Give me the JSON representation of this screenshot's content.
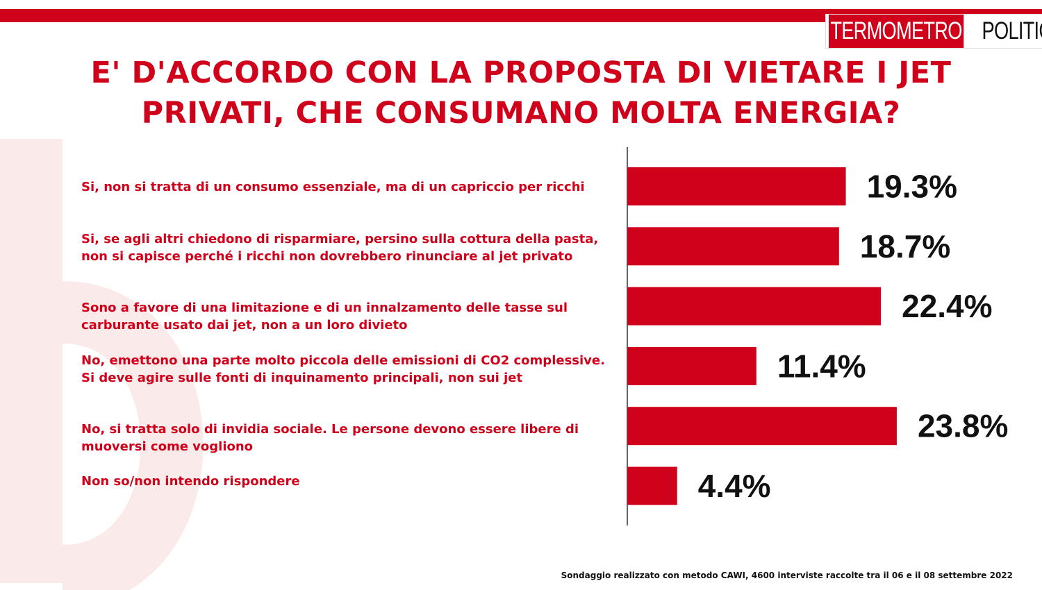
{
  "brand": {
    "logo_part1": "TERMOMETRO",
    "logo_part2": "POLITICO",
    "accent_color": "#d0021b"
  },
  "title": "E' D'ACCORDO CON LA PROPOSTA DI VIETARE I JET PRIVATI, CHE CONSUMANO MOLTA ENERGIA?",
  "footnote": "Sondaggio realizzato con metodo CAWI, 4600 interviste raccolte tra il 06 e il 08 settembre 2022",
  "chart_data": {
    "type": "bar",
    "orientation": "horizontal",
    "categories": [
      "Si, non si tratta di un consumo essenziale, ma di un capriccio per ricchi",
      "Si, se agli altri chiedono di risparmiare, persino sulla cottura della pasta, non si capisce perché i ricchi non dovrebbero rinunciare al jet privato",
      "Sono a favore di una limitazione e di un innalzamento delle tasse sul carburante usato dai jet, non a un loro divieto",
      "No, emettono una parte molto piccola delle emissioni di CO2 complessive. Si deve agire sulle fonti di inquinamento principali, non sui jet",
      "No, si tratta solo di invidia sociale. Le persone devono essere libere di muoversi come vogliono",
      "Non so/non intendo rispondere"
    ],
    "values": [
      19.3,
      18.7,
      22.4,
      11.4,
      23.8,
      4.4
    ],
    "value_labels": [
      "19.3%",
      "18.7%",
      "22.4%",
      "11.4%",
      "23.8%",
      "4.4%"
    ],
    "bar_color": "#d0021b",
    "grid": false,
    "legend": "none"
  }
}
